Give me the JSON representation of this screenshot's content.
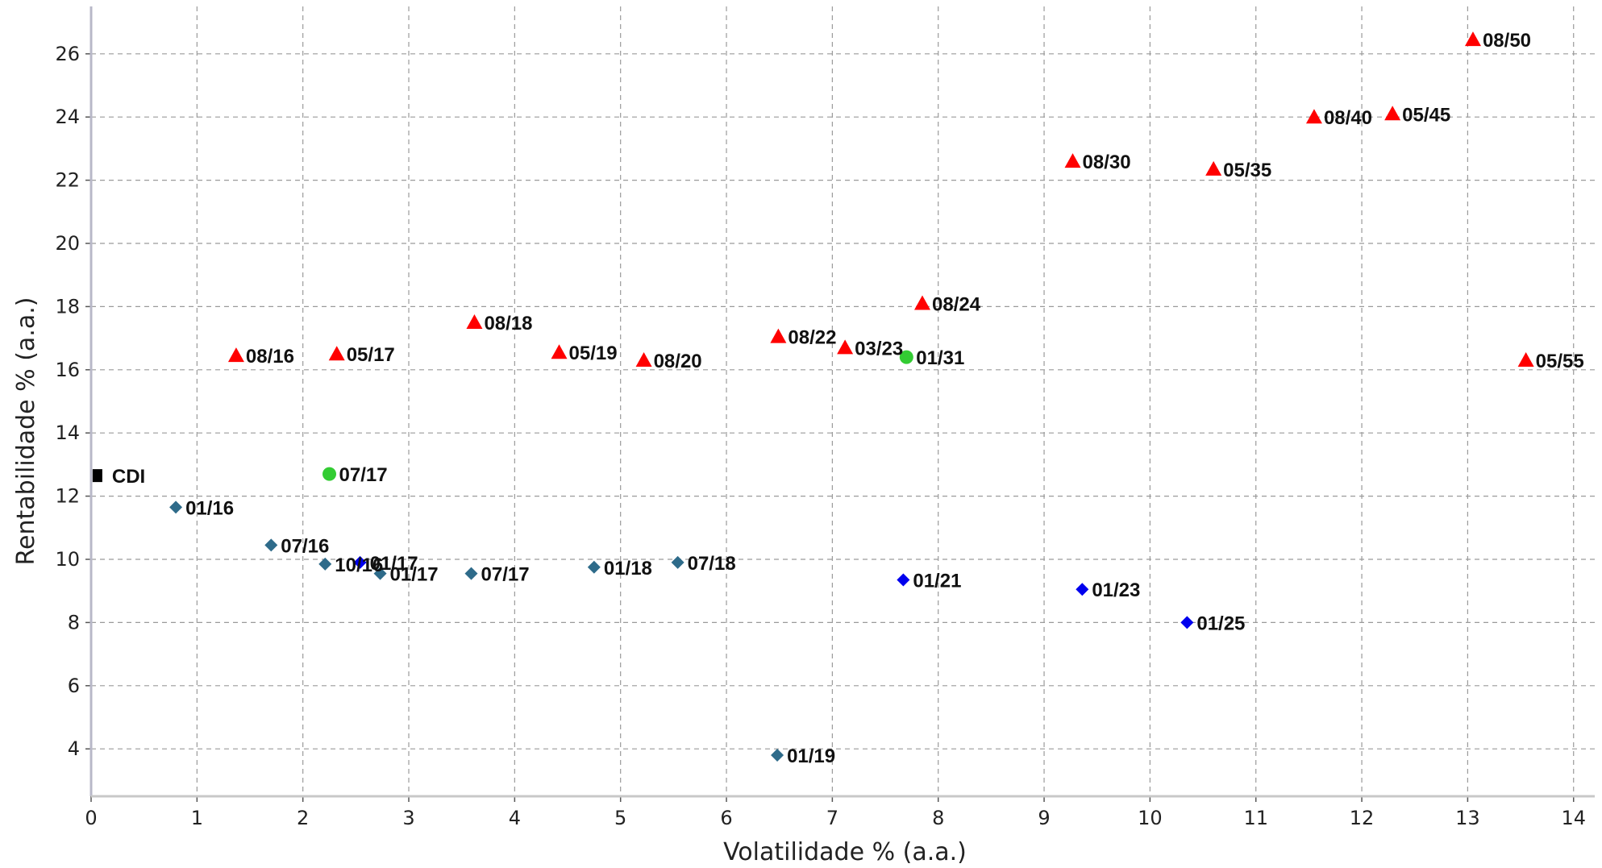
{
  "chart_data": {
    "type": "scatter",
    "title": "",
    "xlabel": "Volatilidade % (a.a.)",
    "ylabel": "Rentabilidade % (a.a.)",
    "xlim": [
      0,
      14.2
    ],
    "ylim": [
      2.5,
      27.5
    ],
    "x_ticks": [
      "0",
      "1",
      "2",
      "3",
      "4",
      "5",
      "6",
      "7",
      "8",
      "9",
      "10",
      "11",
      "12",
      "13",
      "14"
    ],
    "y_ticks": [
      "4",
      "6",
      "8",
      "10",
      "12",
      "14",
      "16",
      "18",
      "20",
      "22",
      "24",
      "26"
    ],
    "grid": true,
    "colors": {
      "red_triangle": "#ff0000",
      "green_circle": "#33cc33",
      "teal_diamond": "#2e6b8a",
      "blue_diamond": "#0000ee",
      "black_square": "#000000"
    },
    "series": [
      {
        "marker": "triangle",
        "color": "#ff0000",
        "points": [
          {
            "x": 1.37,
            "y": 16.45,
            "label": "08/16"
          },
          {
            "x": 2.32,
            "y": 16.5,
            "label": "05/17"
          },
          {
            "x": 3.62,
            "y": 17.5,
            "label": "08/18"
          },
          {
            "x": 4.42,
            "y": 16.55,
            "label": "05/19"
          },
          {
            "x": 5.22,
            "y": 16.3,
            "label": "08/20"
          },
          {
            "x": 6.49,
            "y": 17.05,
            "label": "08/22"
          },
          {
            "x": 7.12,
            "y": 16.7,
            "label": "03/23"
          },
          {
            "x": 7.85,
            "y": 18.1,
            "label": "08/24"
          },
          {
            "x": 9.27,
            "y": 22.6,
            "label": "08/30"
          },
          {
            "x": 10.6,
            "y": 22.35,
            "label": "05/35"
          },
          {
            "x": 11.55,
            "y": 24.0,
            "label": "08/40"
          },
          {
            "x": 12.29,
            "y": 24.1,
            "label": "05/45"
          },
          {
            "x": 13.05,
            "y": 26.45,
            "label": "08/50"
          },
          {
            "x": 13.55,
            "y": 16.3,
            "label": "05/55"
          }
        ]
      },
      {
        "marker": "circle",
        "color": "#33cc33",
        "points": [
          {
            "x": 2.25,
            "y": 12.7,
            "label": "07/17"
          },
          {
            "x": 7.7,
            "y": 16.4,
            "label": "01/31"
          }
        ]
      },
      {
        "marker": "diamond",
        "color": "#2e6b8a",
        "points": [
          {
            "x": 0.8,
            "y": 11.65,
            "label": "01/16"
          },
          {
            "x": 1.7,
            "y": 10.45,
            "label": "07/16"
          },
          {
            "x": 2.21,
            "y": 9.85,
            "label": "10/16"
          },
          {
            "x": 2.73,
            "y": 9.55,
            "label": "01/17"
          },
          {
            "x": 3.59,
            "y": 9.55,
            "label": "07/17"
          },
          {
            "x": 4.75,
            "y": 9.75,
            "label": "01/18"
          },
          {
            "x": 5.54,
            "y": 9.9,
            "label": "07/18"
          },
          {
            "x": 6.48,
            "y": 3.8,
            "label": "01/19"
          }
        ]
      },
      {
        "marker": "diamond",
        "color": "#0000ee",
        "points": [
          {
            "x": 2.54,
            "y": 9.9,
            "label": "01/17"
          },
          {
            "x": 7.67,
            "y": 9.35,
            "label": "01/21"
          },
          {
            "x": 9.36,
            "y": 9.05,
            "label": "01/23"
          },
          {
            "x": 10.35,
            "y": 8.0,
            "label": "01/25"
          }
        ]
      },
      {
        "marker": "square",
        "color": "#000000",
        "points": [
          {
            "x": 0.06,
            "y": 12.65,
            "label": "CDI"
          }
        ]
      }
    ]
  }
}
